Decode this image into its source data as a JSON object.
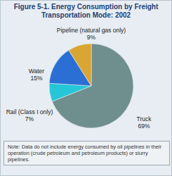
{
  "chart_data": {
    "type": "pie",
    "title": "Figure 5-1. Energy Consumption by Freight Transportation Mode: 2002",
    "categories": [
      "Truck",
      "Rail (Class I only)",
      "Water",
      "Pipeline (natural gas only)"
    ],
    "values": [
      69,
      7,
      15,
      9
    ],
    "value_labels": [
      "69%",
      "7%",
      "15%",
      "9%"
    ],
    "colors": [
      "#6f8f8e",
      "#25c6d6",
      "#2c6fd4",
      "#d9a634"
    ],
    "data_labels": true,
    "annotations": [
      "Note: Data do not include energy consumed by oil pipelines in their operation (crude petroleum and petroleum products) or slurry pipelines."
    ]
  }
}
